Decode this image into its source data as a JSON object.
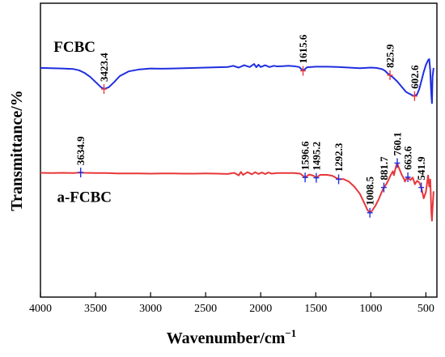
{
  "chart_data": {
    "type": "line",
    "title": "",
    "xlabel": "Wavenumber/cm",
    "xlabel_sup": "−1",
    "ylabel": "Transmittance/%",
    "xlim": [
      4000,
      400
    ],
    "x_reversed": true,
    "x_ticks": [
      4000,
      3500,
      3000,
      2500,
      2000,
      1500,
      1000,
      500
    ],
    "ylim": [
      0,
      100
    ],
    "y_ticks_shown": false,
    "grid": false,
    "legend": "none (series labeled inline)",
    "series": [
      {
        "name": "FCBC",
        "color": "#1f2ee0",
        "points": [
          [
            4000,
            78.0
          ],
          [
            3900,
            77.9
          ],
          [
            3800,
            77.8
          ],
          [
            3700,
            77.6
          ],
          [
            3650,
            77.2
          ],
          [
            3600,
            76.3
          ],
          [
            3550,
            75.0
          ],
          [
            3500,
            73.2
          ],
          [
            3450,
            71.4
          ],
          [
            3423.4,
            70.8
          ],
          [
            3380,
            71.4
          ],
          [
            3330,
            73.2
          ],
          [
            3280,
            75.2
          ],
          [
            3200,
            76.8
          ],
          [
            3100,
            77.5
          ],
          [
            3000,
            77.8
          ],
          [
            2900,
            77.7
          ],
          [
            2800,
            77.8
          ],
          [
            2700,
            77.9
          ],
          [
            2600,
            78.0
          ],
          [
            2500,
            78.1
          ],
          [
            2400,
            78.2
          ],
          [
            2300,
            78.3
          ],
          [
            2250,
            78.7
          ],
          [
            2200,
            78.1
          ],
          [
            2150,
            78.9
          ],
          [
            2100,
            78.3
          ],
          [
            2060,
            79.3
          ],
          [
            2040,
            78.2
          ],
          [
            2020,
            79.1
          ],
          [
            2000,
            78.3
          ],
          [
            1960,
            78.9
          ],
          [
            1920,
            78.3
          ],
          [
            1880,
            78.7
          ],
          [
            1850,
            78.5
          ],
          [
            1800,
            78.6
          ],
          [
            1750,
            78.7
          ],
          [
            1700,
            78.6
          ],
          [
            1650,
            78.3
          ],
          [
            1615.6,
            77.0
          ],
          [
            1580,
            78.2
          ],
          [
            1500,
            78.4
          ],
          [
            1400,
            78.4
          ],
          [
            1300,
            78.3
          ],
          [
            1200,
            78.1
          ],
          [
            1100,
            77.9
          ],
          [
            1000,
            78.1
          ],
          [
            950,
            78.0
          ],
          [
            900,
            77.6
          ],
          [
            870,
            77.0
          ],
          [
            850,
            76.2
          ],
          [
            825.9,
            75.5
          ],
          [
            800,
            74.8
          ],
          [
            760,
            73.4
          ],
          [
            720,
            71.6
          ],
          [
            680,
            69.8
          ],
          [
            640,
            69.0
          ],
          [
            620,
            68.6
          ],
          [
            602.6,
            68.4
          ],
          [
            580,
            69.0
          ],
          [
            560,
            70.8
          ],
          [
            540,
            73.6
          ],
          [
            520,
            76.6
          ],
          [
            500,
            79.0
          ],
          [
            480,
            80.6
          ],
          [
            470,
            81.0
          ],
          [
            460,
            77.0
          ],
          [
            455,
            72.0
          ],
          [
            450,
            68.5
          ],
          [
            445,
            66.0
          ],
          [
            440,
            75.0
          ],
          [
            430,
            78.0
          ]
        ]
      },
      {
        "name": "a-FCBC",
        "color": "#e8373a",
        "points": [
          [
            4000,
            42.3
          ],
          [
            3900,
            42.2
          ],
          [
            3800,
            42.3
          ],
          [
            3700,
            42.2
          ],
          [
            3634.9,
            42.4
          ],
          [
            3600,
            42.3
          ],
          [
            3500,
            42.2
          ],
          [
            3400,
            42.2
          ],
          [
            3300,
            42.1
          ],
          [
            3200,
            42.1
          ],
          [
            3100,
            42.1
          ],
          [
            3000,
            42.0
          ],
          [
            2900,
            42.1
          ],
          [
            2800,
            42.1
          ],
          [
            2700,
            42.0
          ],
          [
            2600,
            42.0
          ],
          [
            2500,
            42.1
          ],
          [
            2400,
            42.0
          ],
          [
            2300,
            41.9
          ],
          [
            2240,
            42.3
          ],
          [
            2200,
            41.4
          ],
          [
            2180,
            42.6
          ],
          [
            2160,
            41.6
          ],
          [
            2120,
            42.5
          ],
          [
            2080,
            41.8
          ],
          [
            2050,
            42.5
          ],
          [
            2020,
            41.9
          ],
          [
            1990,
            42.4
          ],
          [
            1960,
            41.9
          ],
          [
            1930,
            42.4
          ],
          [
            1900,
            42.0
          ],
          [
            1850,
            42.2
          ],
          [
            1800,
            42.2
          ],
          [
            1700,
            42.2
          ],
          [
            1640,
            42.0
          ],
          [
            1596.6,
            40.7
          ],
          [
            1560,
            41.7
          ],
          [
            1520,
            41.3
          ],
          [
            1495.2,
            40.6
          ],
          [
            1460,
            41.6
          ],
          [
            1400,
            41.6
          ],
          [
            1350,
            41.3
          ],
          [
            1292.3,
            40.1
          ],
          [
            1250,
            40.2
          ],
          [
            1200,
            39.3
          ],
          [
            1150,
            37.6
          ],
          [
            1100,
            35.2
          ],
          [
            1060,
            32.0
          ],
          [
            1030,
            29.6
          ],
          [
            1008.5,
            28.7
          ],
          [
            990,
            29.3
          ],
          [
            960,
            31.0
          ],
          [
            930,
            33.2
          ],
          [
            900,
            35.8
          ],
          [
            881.7,
            37.3
          ],
          [
            860,
            38.4
          ],
          [
            840,
            39.8
          ],
          [
            820,
            41.5
          ],
          [
            800,
            42.8
          ],
          [
            790,
            41.5
          ],
          [
            780,
            43.2
          ],
          [
            770,
            44.6
          ],
          [
            760.1,
            45.6
          ],
          [
            750,
            44.4
          ],
          [
            720,
            41.7
          ],
          [
            700,
            40.3
          ],
          [
            690,
            39.3
          ],
          [
            680,
            40.1
          ],
          [
            663.6,
            40.8
          ],
          [
            640,
            39.8
          ],
          [
            620,
            40.7
          ],
          [
            600,
            38.4
          ],
          [
            580,
            39.6
          ],
          [
            560,
            39.0
          ],
          [
            541.9,
            37.3
          ],
          [
            520,
            33.6
          ],
          [
            500,
            35.8
          ],
          [
            480,
            41.4
          ],
          [
            470,
            37.6
          ],
          [
            460,
            40.0
          ],
          [
            450,
            28.5
          ],
          [
            445,
            26.0
          ],
          [
            440,
            30.0
          ],
          [
            430,
            36.0
          ]
        ]
      }
    ],
    "annotations": [
      {
        "series": "FCBC",
        "x": 3423.4,
        "label": "3423.4",
        "marker_color": "#e8373a"
      },
      {
        "series": "FCBC",
        "x": 1615.6,
        "label": "1615.6",
        "marker_color": "#e8373a"
      },
      {
        "series": "FCBC",
        "x": 825.9,
        "label": "825.9",
        "marker_color": "#e8373a"
      },
      {
        "series": "FCBC",
        "x": 602.6,
        "label": "602.6",
        "marker_color": "#e8373a"
      },
      {
        "series": "a-FCBC",
        "x": 3634.9,
        "label": "3634.9",
        "marker_color": "#1f2ee0"
      },
      {
        "series": "a-FCBC",
        "x": 1596.6,
        "label": "1596.6",
        "marker_color": "#1f2ee0"
      },
      {
        "series": "a-FCBC",
        "x": 1495.2,
        "label": "1495.2",
        "marker_color": "#1f2ee0"
      },
      {
        "series": "a-FCBC",
        "x": 1292.3,
        "label": "1292.3",
        "marker_color": "#1f2ee0"
      },
      {
        "series": "a-FCBC",
        "x": 1008.5,
        "label": "1008.5",
        "marker_color": "#1f2ee0"
      },
      {
        "series": "a-FCBC",
        "x": 881.7,
        "label": "881.7",
        "marker_color": "#1f2ee0"
      },
      {
        "series": "a-FCBC",
        "x": 760.1,
        "label": "760.1",
        "marker_color": "#1f2ee0"
      },
      {
        "series": "a-FCBC",
        "x": 663.6,
        "label": "663.6",
        "marker_color": "#1f2ee0"
      },
      {
        "series": "a-FCBC",
        "x": 541.9,
        "label": "541.9",
        "marker_color": "#1f2ee0"
      }
    ]
  }
}
